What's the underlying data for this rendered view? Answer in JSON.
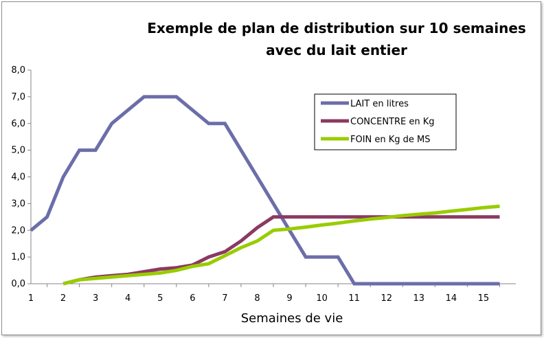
{
  "chart_data": {
    "type": "line",
    "title_lines": [
      "Exemple de plan de distribution sur 10 semaines",
      "avec du lait entier"
    ],
    "xlabel": "Semaines de vie",
    "ylabel": "",
    "x_ticks": [
      "1",
      "2",
      "3",
      "4",
      "5",
      "6",
      "7",
      "8",
      "9",
      "10",
      "11",
      "12",
      "13",
      "14",
      "15"
    ],
    "y_ticks": [
      "0,0",
      "1,0",
      "2,0",
      "3,0",
      "4,0",
      "5,0",
      "6,0",
      "7,0",
      "8,0"
    ],
    "xlim": [
      1,
      16
    ],
    "ylim": [
      0,
      8
    ],
    "grid": false,
    "legend_position": "top-right",
    "series": [
      {
        "name": "LAIT en litres",
        "color": "#6b6ea9",
        "x": [
          1,
          1.5,
          2,
          2.5,
          3,
          3.5,
          4,
          4.5,
          5,
          5.5,
          6,
          6.5,
          7,
          7.5,
          8,
          8.5,
          9,
          9.5,
          10,
          10.5,
          11,
          11.5,
          12,
          12.5,
          13,
          13.5,
          14,
          14.5,
          15,
          15.5
        ],
        "values": [
          2.0,
          2.5,
          4.0,
          5.0,
          5.0,
          6.0,
          6.5,
          7.0,
          7.0,
          7.0,
          6.5,
          6.0,
          6.0,
          5.0,
          4.0,
          3.0,
          2.0,
          1.0,
          1.0,
          1.0,
          0.0,
          0.0,
          0.0,
          0.0,
          0.0,
          0.0,
          0.0,
          0.0,
          0.0,
          0.0
        ]
      },
      {
        "name": "CONCENTRE en Kg",
        "color": "#8b3a62",
        "x": [
          2,
          2.5,
          3,
          3.5,
          4,
          4.5,
          5,
          5.5,
          6,
          6.5,
          7,
          7.5,
          8,
          8.5,
          9,
          9.5,
          10,
          10.5,
          11,
          11.5,
          12,
          12.5,
          13,
          13.5,
          14,
          14.5,
          15,
          15.5
        ],
        "values": [
          0.0,
          0.15,
          0.25,
          0.3,
          0.35,
          0.45,
          0.55,
          0.6,
          0.7,
          1.0,
          1.2,
          1.6,
          2.1,
          2.5,
          2.5,
          2.5,
          2.5,
          2.5,
          2.5,
          2.5,
          2.5,
          2.5,
          2.5,
          2.5,
          2.5,
          2.5,
          2.5,
          2.5
        ]
      },
      {
        "name": "FOIN en Kg de MS",
        "color": "#99cc00",
        "x": [
          2,
          2.5,
          3,
          3.5,
          4,
          4.5,
          5,
          5.5,
          6,
          6.5,
          7,
          7.5,
          8,
          8.5,
          9,
          9.5,
          10,
          10.5,
          11,
          11.5,
          12,
          12.5,
          13,
          13.5,
          14,
          14.5,
          15,
          15.5
        ],
        "values": [
          0.0,
          0.15,
          0.2,
          0.25,
          0.3,
          0.35,
          0.4,
          0.5,
          0.65,
          0.75,
          1.05,
          1.35,
          1.6,
          2.0,
          2.05,
          2.12,
          2.2,
          2.27,
          2.35,
          2.42,
          2.48,
          2.55,
          2.6,
          2.65,
          2.72,
          2.78,
          2.85,
          2.9
        ]
      }
    ]
  }
}
